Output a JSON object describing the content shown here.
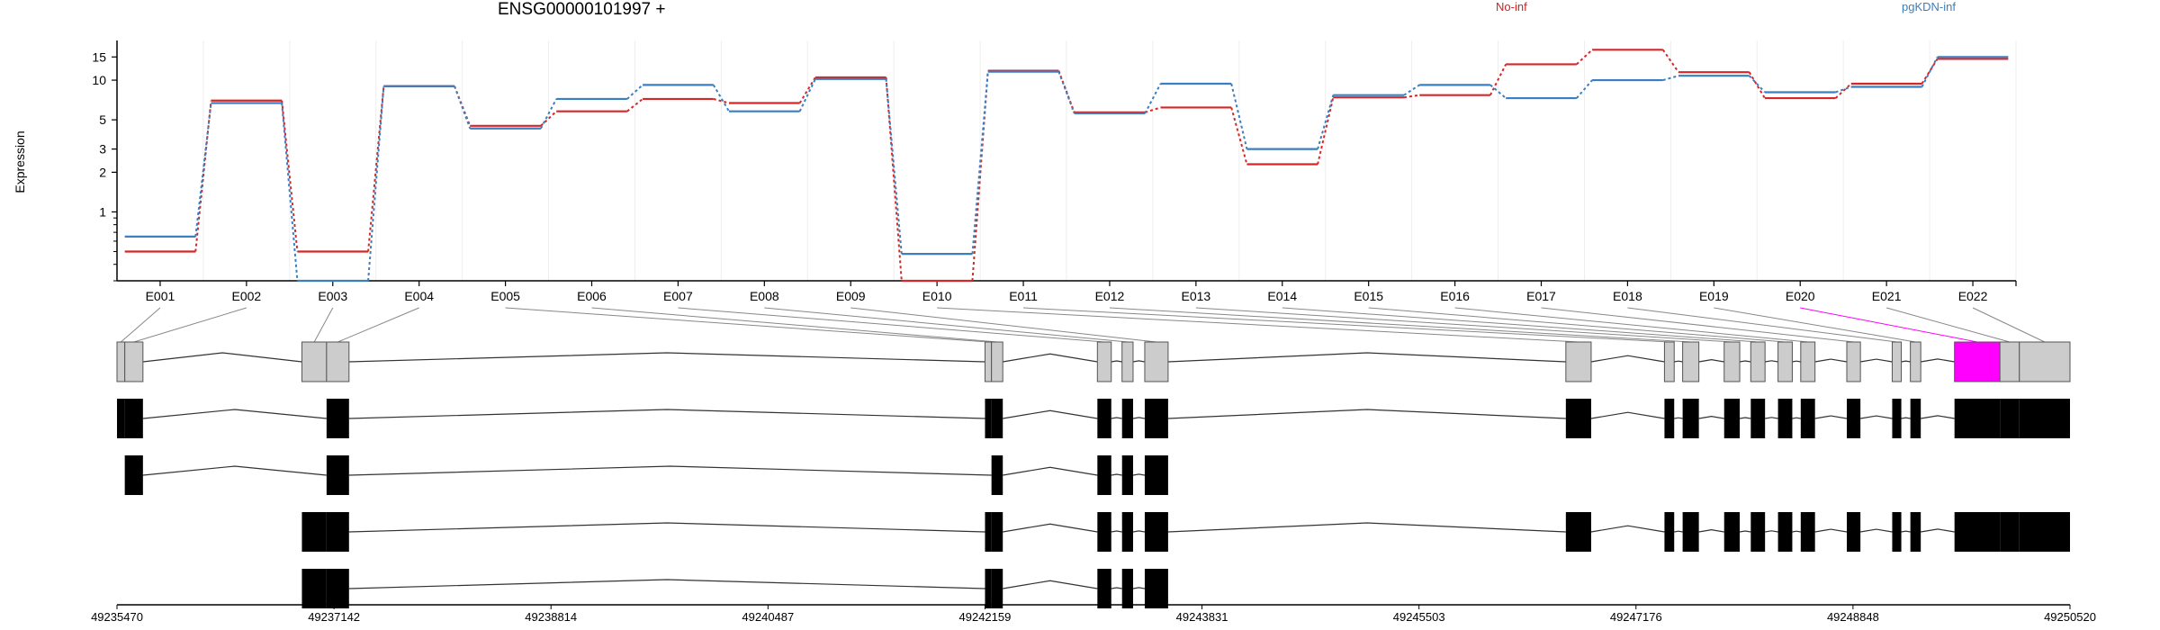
{
  "title": "ENSG00000101997 +",
  "legend": {
    "noinf_label": "No-inf",
    "pgkdn_label": "pgKDN-inf"
  },
  "colors": {
    "noinf": "#d62728",
    "pgkdn": "#3a7fc0",
    "highlight": "#ff00ff",
    "exon_fill": "#cccccc",
    "transcript": "#000000"
  },
  "chart_data": {
    "type": "line",
    "ylabel": "Expression",
    "yscale": "log",
    "yticks": [
      1,
      2,
      3,
      5,
      10,
      15
    ],
    "ylim": [
      0.3,
      20
    ],
    "categories": [
      "E001",
      "E002",
      "E003",
      "E004",
      "E005",
      "E006",
      "E007",
      "E008",
      "E009",
      "E010",
      "E011",
      "E012",
      "E013",
      "E014",
      "E015",
      "E016",
      "E017",
      "E018",
      "E019",
      "E020",
      "E021",
      "E022"
    ],
    "series": [
      {
        "name": "No-inf",
        "values": [
          0.5,
          7.0,
          0.5,
          9.0,
          4.5,
          5.8,
          7.2,
          6.7,
          10.5,
          0.3,
          11.8,
          5.7,
          6.2,
          2.3,
          7.4,
          7.7,
          13.2,
          17.0,
          11.5,
          7.3,
          9.4,
          14.5
        ]
      },
      {
        "name": "pgKDN-inf",
        "values": [
          0.65,
          6.7,
          0.3,
          9.0,
          4.3,
          7.2,
          9.2,
          5.8,
          10.2,
          0.48,
          11.6,
          5.6,
          9.4,
          3.0,
          7.7,
          9.2,
          7.3,
          10.0,
          10.8,
          8.1,
          8.9,
          15.0
        ]
      }
    ],
    "highlight_exon": "E020"
  },
  "genome_axis": {
    "ticks": [
      "49235470",
      "49237142",
      "49238814",
      "49240487",
      "49242159",
      "49243831",
      "49245503",
      "49247176",
      "49248848",
      "49250520"
    ]
  },
  "gene_model": {
    "exons": [
      {
        "id": "E001",
        "start": 49235470,
        "end": 49235530
      },
      {
        "id": "E002",
        "start": 49235530,
        "end": 49235670
      },
      {
        "id": "E003",
        "start": 49236895,
        "end": 49237085
      },
      {
        "id": "E004",
        "start": 49237085,
        "end": 49237258
      },
      {
        "id": "E005",
        "start": 49242159,
        "end": 49242209
      },
      {
        "id": "E006",
        "start": 49242209,
        "end": 49242296
      },
      {
        "id": "E007",
        "start": 49243025,
        "end": 49243132
      },
      {
        "id": "E008",
        "start": 49243215,
        "end": 49243300
      },
      {
        "id": "E009",
        "start": 49243390,
        "end": 49243570
      },
      {
        "id": "E010",
        "start": 49246635,
        "end": 49246830
      },
      {
        "id": "E011",
        "start": 49247395,
        "end": 49247470
      },
      {
        "id": "E012",
        "start": 49247535,
        "end": 49247660
      },
      {
        "id": "E013",
        "start": 49247855,
        "end": 49247975
      },
      {
        "id": "E014",
        "start": 49248060,
        "end": 49248170
      },
      {
        "id": "E015",
        "start": 49248270,
        "end": 49248380
      },
      {
        "id": "E016",
        "start": 49248445,
        "end": 49248555
      },
      {
        "id": "E017",
        "start": 49248800,
        "end": 49248905
      },
      {
        "id": "E018",
        "start": 49249150,
        "end": 49249220
      },
      {
        "id": "E019",
        "start": 49249290,
        "end": 49249370
      },
      {
        "id": "E020",
        "start": 49249630,
        "end": 49249980
      },
      {
        "id": "E021",
        "start": 49249980,
        "end": 49250130
      },
      {
        "id": "E022",
        "start": 49250130,
        "end": 49250520
      }
    ],
    "transcripts": [
      {
        "exons": [
          "E001",
          "E002",
          "E004",
          "E005",
          "E006",
          "E007",
          "E008",
          "E009",
          "E010",
          "E011",
          "E012",
          "E013",
          "E014",
          "E015",
          "E016",
          "E017",
          "E018",
          "E019",
          "E020",
          "E021",
          "E022"
        ]
      },
      {
        "exons": [
          "E002",
          "E004",
          "E006",
          "E007",
          "E008",
          "E009"
        ]
      },
      {
        "exons": [
          "E003",
          "E004",
          "E005",
          "E006",
          "E007",
          "E008",
          "E009",
          "E010",
          "E011",
          "E012",
          "E013",
          "E014",
          "E015",
          "E016",
          "E017",
          "E018",
          "E019",
          "E020",
          "E021",
          "E022"
        ]
      },
      {
        "exons": [
          "E003",
          "E004",
          "E005",
          "E006",
          "E007",
          "E008",
          "E009"
        ]
      }
    ]
  }
}
